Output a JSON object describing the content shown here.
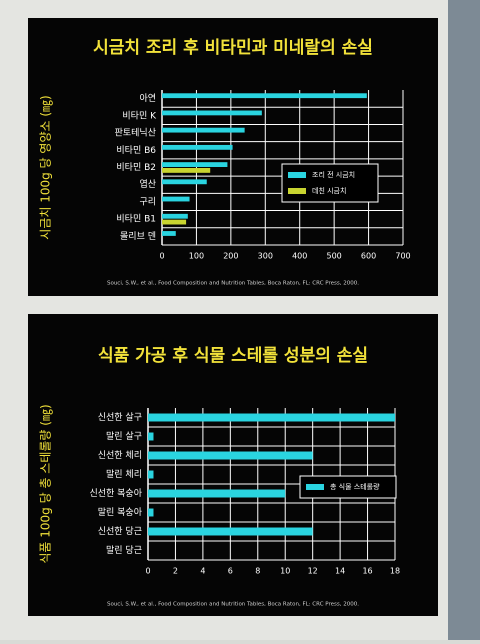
{
  "chart_data": [
    {
      "type": "bar",
      "orientation": "horizontal",
      "title": "시금치 조리 후 비타민과 미네랄의 손실",
      "y_label": "시금치 100g 당 영양소 (㎎)",
      "source": "Souci, S.W., et al., Food Composition and Nutrition Tables, Boca Raton, FL: CRC Press, 2000.",
      "categories": [
        "아연",
        "비타민 K",
        "판토테닉산",
        "비타민 B6",
        "비타민 B2",
        "엽산",
        "구리",
        "비타민 B1",
        "몰리브 덴"
      ],
      "series": [
        {
          "name": "조리 전 시금치",
          "color": "#2ad4e0",
          "values": [
            595,
            290,
            240,
            205,
            190,
            130,
            80,
            75,
            40
          ]
        },
        {
          "name": "데친 시금치",
          "color": "#c8d430",
          "values": [
            null,
            null,
            null,
            null,
            140,
            null,
            null,
            70,
            null
          ]
        }
      ],
      "xlim": [
        0,
        700
      ],
      "xticks": [
        0,
        100,
        200,
        300,
        400,
        500,
        600,
        700
      ],
      "grid": true,
      "legend": "right"
    },
    {
      "type": "bar",
      "orientation": "horizontal",
      "title": "식품 가공 후 식물 스테롤 성분의 손실",
      "y_label": "식품 100g 당 총 스테롤량 (㎎)",
      "source": "Souci, S.W., et al., Food Composition and Nutrition Tables, Boca Raton, FL: CRC Press, 2000.",
      "categories": [
        "신선한 살구",
        "말린 살구",
        "신선한 체리",
        "말린 체리",
        "신선한 복숭아",
        "말린 복숭아",
        "신선한 당근",
        "말린 당근"
      ],
      "series": [
        {
          "name": "총 식물 스테롤량",
          "color": "#2ad4e0",
          "values": [
            18,
            0.4,
            12,
            0.4,
            10,
            0.4,
            12,
            0
          ]
        }
      ],
      "xlim": [
        0,
        18
      ],
      "xticks": [
        0,
        2,
        4,
        6,
        8,
        10,
        12,
        14,
        16,
        18
      ],
      "grid": true,
      "legend": "right"
    }
  ]
}
